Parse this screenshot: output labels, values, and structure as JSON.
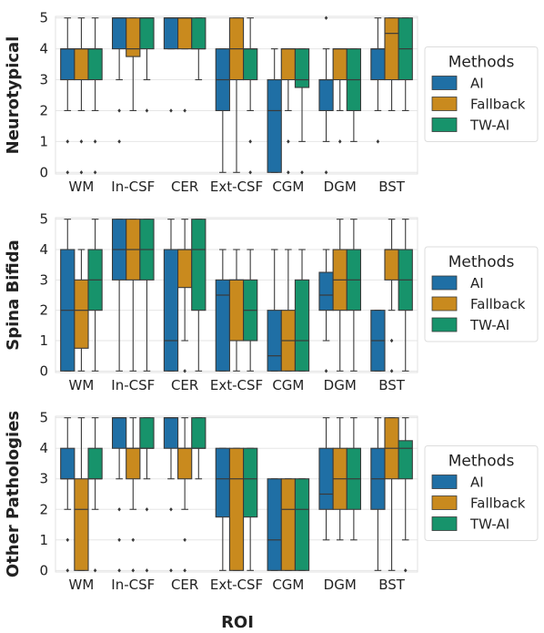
{
  "chart_data": {
    "type": "box",
    "xlabel": "ROI",
    "categories": [
      "WM",
      "In-CSF",
      "CER",
      "Ext-CSF",
      "CGM",
      "DGM",
      "BST"
    ],
    "ylim": [
      0,
      5
    ],
    "yticks": [
      "0",
      "1",
      "2",
      "3",
      "4",
      "5"
    ],
    "legend": {
      "title": "Methods",
      "placement": "right"
    },
    "methods": [
      {
        "name": "AI",
        "color": "#1f6fa5"
      },
      {
        "name": "Fallback",
        "color": "#c98a1e"
      },
      {
        "name": "TW-AI",
        "color": "#17936b"
      }
    ],
    "panels": [
      {
        "ylabel": "Neurotypical",
        "boxes": [
          [
            {
              "q1": 3,
              "med": 4,
              "q3": 4,
              "lo": 2,
              "hi": 5,
              "out": [
                1,
                0
              ]
            },
            {
              "q1": 3,
              "med": 4,
              "q3": 4,
              "lo": 2,
              "hi": 5,
              "out": [
                1,
                0
              ]
            },
            {
              "q1": 3,
              "med": 4,
              "q3": 4,
              "lo": 2,
              "hi": 5,
              "out": [
                1,
                0
              ]
            }
          ],
          [
            {
              "q1": 4,
              "med": 5,
              "q3": 5,
              "lo": 3,
              "hi": 5,
              "out": [
                2,
                1
              ]
            },
            {
              "q1": 3.75,
              "med": 4,
              "q3": 5,
              "lo": 2,
              "hi": 5,
              "out": []
            },
            {
              "q1": 4,
              "med": 5,
              "q3": 5,
              "lo": 3,
              "hi": 5,
              "out": [
                2
              ]
            }
          ],
          [
            {
              "q1": 4,
              "med": 5,
              "q3": 5,
              "lo": 4,
              "hi": 5,
              "out": [
                2
              ]
            },
            {
              "q1": 4,
              "med": 5,
              "q3": 5,
              "lo": 4,
              "hi": 5,
              "out": [
                2
              ]
            },
            {
              "q1": 4,
              "med": 4,
              "q3": 5,
              "lo": 3,
              "hi": 5,
              "out": []
            }
          ],
          [
            {
              "q1": 2,
              "med": 3,
              "q3": 4,
              "lo": 0,
              "hi": 4,
              "out": []
            },
            {
              "q1": 3,
              "med": 4,
              "q3": 5,
              "lo": 0,
              "hi": 5,
              "out": []
            },
            {
              "q1": 3,
              "med": 4,
              "q3": 4,
              "lo": 2,
              "hi": 5,
              "out": [
                1,
                0
              ]
            }
          ],
          [
            {
              "q1": 0,
              "med": 2,
              "q3": 3,
              "lo": 0,
              "hi": 4,
              "out": []
            },
            {
              "q1": 3,
              "med": 4,
              "q3": 4,
              "lo": 2,
              "hi": 4,
              "out": [
                1,
                0
              ]
            },
            {
              "q1": 2.75,
              "med": 3,
              "q3": 4,
              "lo": 1,
              "hi": 4,
              "out": [
                0
              ]
            }
          ],
          [
            {
              "q1": 2,
              "med": 3,
              "q3": 3,
              "lo": 1,
              "hi": 4,
              "out": [
                5,
                0
              ]
            },
            {
              "q1": 3,
              "med": 4,
              "q3": 4,
              "lo": 2,
              "hi": 4,
              "out": [
                1
              ]
            },
            {
              "q1": 2,
              "med": 3,
              "q3": 4,
              "lo": 1,
              "hi": 4,
              "out": []
            }
          ],
          [
            {
              "q1": 3,
              "med": 4,
              "q3": 4,
              "lo": 2,
              "hi": 5,
              "out": [
                1
              ]
            },
            {
              "q1": 3,
              "med": 4.5,
              "q3": 5,
              "lo": 2,
              "hi": 5,
              "out": []
            },
            {
              "q1": 3,
              "med": 4,
              "q3": 5,
              "lo": 2,
              "hi": 5,
              "out": []
            }
          ]
        ]
      },
      {
        "ylabel": "Spina Bifida",
        "boxes": [
          [
            {
              "q1": 0,
              "med": 2,
              "q3": 4,
              "lo": 0,
              "hi": 5,
              "out": []
            },
            {
              "q1": 0.75,
              "med": 2,
              "q3": 3,
              "lo": 0,
              "hi": 4,
              "out": []
            },
            {
              "q1": 2,
              "med": 3,
              "q3": 4,
              "lo": 0,
              "hi": 5,
              "out": []
            }
          ],
          [
            {
              "q1": 3,
              "med": 4,
              "q3": 5,
              "lo": 0,
              "hi": 5,
              "out": []
            },
            {
              "q1": 3,
              "med": 4,
              "q3": 5,
              "lo": 0,
              "hi": 5,
              "out": []
            },
            {
              "q1": 3,
              "med": 4,
              "q3": 5,
              "lo": 0,
              "hi": 5,
              "out": []
            }
          ],
          [
            {
              "q1": 0,
              "med": 1,
              "q3": 4,
              "lo": 0,
              "hi": 5,
              "out": []
            },
            {
              "q1": 2.75,
              "med": 4,
              "q3": 4,
              "lo": 1,
              "hi": 5,
              "out": [
                0
              ]
            },
            {
              "q1": 2,
              "med": 4,
              "q3": 5,
              "lo": 0,
              "hi": 5,
              "out": []
            }
          ],
          [
            {
              "q1": 0,
              "med": 2.5,
              "q3": 3,
              "lo": 0,
              "hi": 4,
              "out": []
            },
            {
              "q1": 1,
              "med": 3,
              "q3": 3,
              "lo": 0,
              "hi": 4,
              "out": []
            },
            {
              "q1": 1,
              "med": 2,
              "q3": 3,
              "lo": 0,
              "hi": 4,
              "out": []
            }
          ],
          [
            {
              "q1": 0,
              "med": 0.5,
              "q3": 2,
              "lo": 0,
              "hi": 4,
              "out": []
            },
            {
              "q1": 0,
              "med": 1,
              "q3": 2,
              "lo": 0,
              "hi": 4,
              "out": []
            },
            {
              "q1": 0,
              "med": 1,
              "q3": 3,
              "lo": 0,
              "hi": 4,
              "out": []
            }
          ],
          [
            {
              "q1": 2,
              "med": 2.5,
              "q3": 3.25,
              "lo": 1,
              "hi": 4,
              "out": [
                0
              ]
            },
            {
              "q1": 2,
              "med": 3,
              "q3": 4,
              "lo": 0,
              "hi": 5,
              "out": []
            },
            {
              "q1": 2,
              "med": 3,
              "q3": 4,
              "lo": 0,
              "hi": 5,
              "out": []
            }
          ],
          [
            {
              "q1": 0,
              "med": 1,
              "q3": 2,
              "lo": 0,
              "hi": 2,
              "out": []
            },
            {
              "q1": 3,
              "med": 4,
              "q3": 4,
              "lo": 2,
              "hi": 5,
              "out": [
                1,
                0
              ]
            },
            {
              "q1": 2,
              "med": 3,
              "q3": 4,
              "lo": 0,
              "hi": 5,
              "out": []
            }
          ]
        ]
      },
      {
        "ylabel": "Other Pathologies",
        "boxes": [
          [
            {
              "q1": 3,
              "med": 3,
              "q3": 4,
              "lo": 2,
              "hi": 5,
              "out": [
                1,
                0
              ]
            },
            {
              "q1": 0,
              "med": 2,
              "q3": 3,
              "lo": 0,
              "hi": 5,
              "out": []
            },
            {
              "q1": 3,
              "med": 3,
              "q3": 4,
              "lo": 2,
              "hi": 5,
              "out": [
                0
              ]
            }
          ],
          [
            {
              "q1": 4,
              "med": 5,
              "q3": 5,
              "lo": 3,
              "hi": 5,
              "out": [
                2,
                1,
                0
              ]
            },
            {
              "q1": 3,
              "med": 4,
              "q3": 4,
              "lo": 2,
              "hi": 5,
              "out": [
                1,
                0
              ]
            },
            {
              "q1": 4,
              "med": 4,
              "q3": 5,
              "lo": 3,
              "hi": 5,
              "out": [
                2,
                0
              ]
            }
          ],
          [
            {
              "q1": 4,
              "med": 5,
              "q3": 5,
              "lo": 3,
              "hi": 5,
              "out": [
                2,
                0
              ]
            },
            {
              "q1": 3,
              "med": 4,
              "q3": 4,
              "lo": 2,
              "hi": 5,
              "out": [
                1,
                0
              ]
            },
            {
              "q1": 4,
              "med": 4,
              "q3": 5,
              "lo": 3,
              "hi": 5,
              "out": []
            }
          ],
          [
            {
              "q1": 1.75,
              "med": 3,
              "q3": 4,
              "lo": 0,
              "hi": 4,
              "out": []
            },
            {
              "q1": 0,
              "med": 3,
              "q3": 4,
              "lo": 0,
              "hi": 4,
              "out": []
            },
            {
              "q1": 1.75,
              "med": 3,
              "q3": 4,
              "lo": 0,
              "hi": 4,
              "out": []
            }
          ],
          [
            {
              "q1": 0,
              "med": 1,
              "q3": 3,
              "lo": 0,
              "hi": 3,
              "out": []
            },
            {
              "q1": 0,
              "med": 2,
              "q3": 3,
              "lo": 0,
              "hi": 3,
              "out": []
            },
            {
              "q1": 0,
              "med": 2,
              "q3": 3,
              "lo": 0,
              "hi": 3,
              "out": []
            }
          ],
          [
            {
              "q1": 2,
              "med": 2.5,
              "q3": 4,
              "lo": 1,
              "hi": 5,
              "out": []
            },
            {
              "q1": 2,
              "med": 3,
              "q3": 4,
              "lo": 1,
              "hi": 5,
              "out": []
            },
            {
              "q1": 2,
              "med": 3,
              "q3": 4,
              "lo": 1,
              "hi": 5,
              "out": []
            }
          ],
          [
            {
              "q1": 2,
              "med": 3,
              "q3": 4,
              "lo": 0,
              "hi": 5,
              "out": []
            },
            {
              "q1": 3,
              "med": 4,
              "q3": 5,
              "lo": 0,
              "hi": 5,
              "out": []
            },
            {
              "q1": 3,
              "med": 4,
              "q3": 4.25,
              "lo": 1,
              "hi": 5,
              "out": [
                0
              ]
            }
          ]
        ]
      }
    ]
  }
}
